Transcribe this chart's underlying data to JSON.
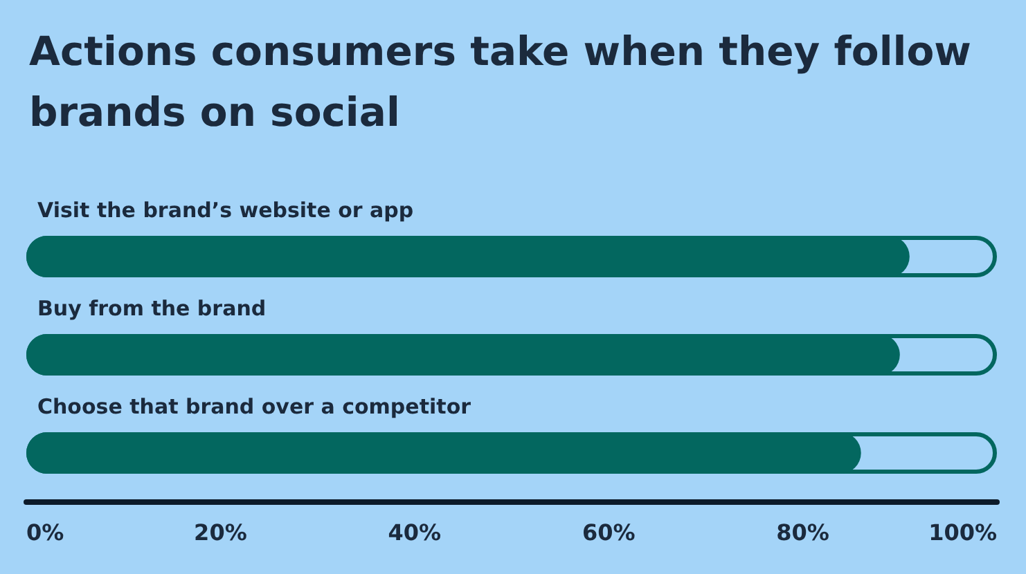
{
  "chart_data": {
    "type": "bar",
    "orientation": "horizontal",
    "title": "Actions consumers take when they follow brands on social",
    "categories": [
      "Visit the brand’s website or app",
      "Buy from the brand",
      "Choose that brand over a competitor"
    ],
    "series": [
      {
        "color": "#a4d4f8",
        "values": [
          100,
          100,
          100
        ]
      },
      {
        "color": "#03675f",
        "values": [
          91,
          90,
          86
        ]
      }
    ],
    "xlim": [
      0,
      100
    ],
    "xticks": [
      {
        "value": 0,
        "label": "0%"
      },
      {
        "value": 20,
        "label": "20%"
      },
      {
        "value": 40,
        "label": "40%"
      },
      {
        "value": 60,
        "label": "60%"
      },
      {
        "value": 80,
        "label": "80%"
      },
      {
        "value": 100,
        "label": "100%"
      }
    ],
    "grid": false
  }
}
